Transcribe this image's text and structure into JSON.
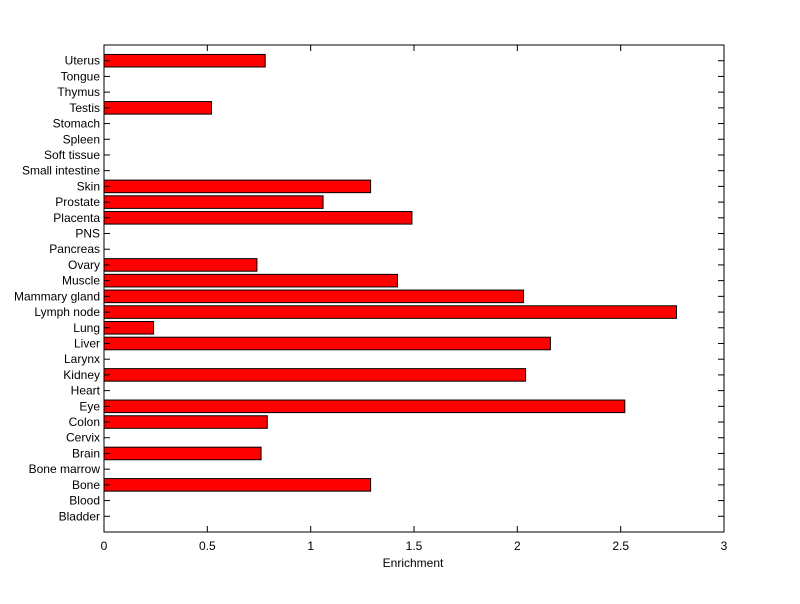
{
  "chart_data": {
    "type": "bar",
    "orientation": "horizontal",
    "title": "",
    "xlabel": "Enrichment",
    "ylabel": "",
    "xlim": [
      0,
      3
    ],
    "xticks": [
      "0",
      "0.5",
      "1",
      "1.5",
      "2",
      "2.5",
      "3"
    ],
    "grid": false,
    "legend": "none",
    "bar_color": "#ff0000",
    "categories": [
      "Bladder",
      "Blood",
      "Bone",
      "Bone marrow",
      "Brain",
      "Cervix",
      "Colon",
      "Eye",
      "Heart",
      "Kidney",
      "Larynx",
      "Liver",
      "Lung",
      "Lymph node",
      "Mammary gland",
      "Muscle",
      "Ovary",
      "Pancreas",
      "PNS",
      "Placenta",
      "Prostate",
      "Skin",
      "Small intestine",
      "Soft tissue",
      "Spleen",
      "Stomach",
      "Testis",
      "Thymus",
      "Tongue",
      "Uterus"
    ],
    "values": [
      0,
      0,
      1.29,
      0,
      0.76,
      0,
      0.79,
      2.52,
      0,
      2.04,
      0,
      2.16,
      0.24,
      2.77,
      2.03,
      1.42,
      0.74,
      0,
      0,
      1.49,
      1.06,
      1.29,
      0,
      0,
      0,
      0,
      0.52,
      0,
      0,
      0.78
    ]
  }
}
